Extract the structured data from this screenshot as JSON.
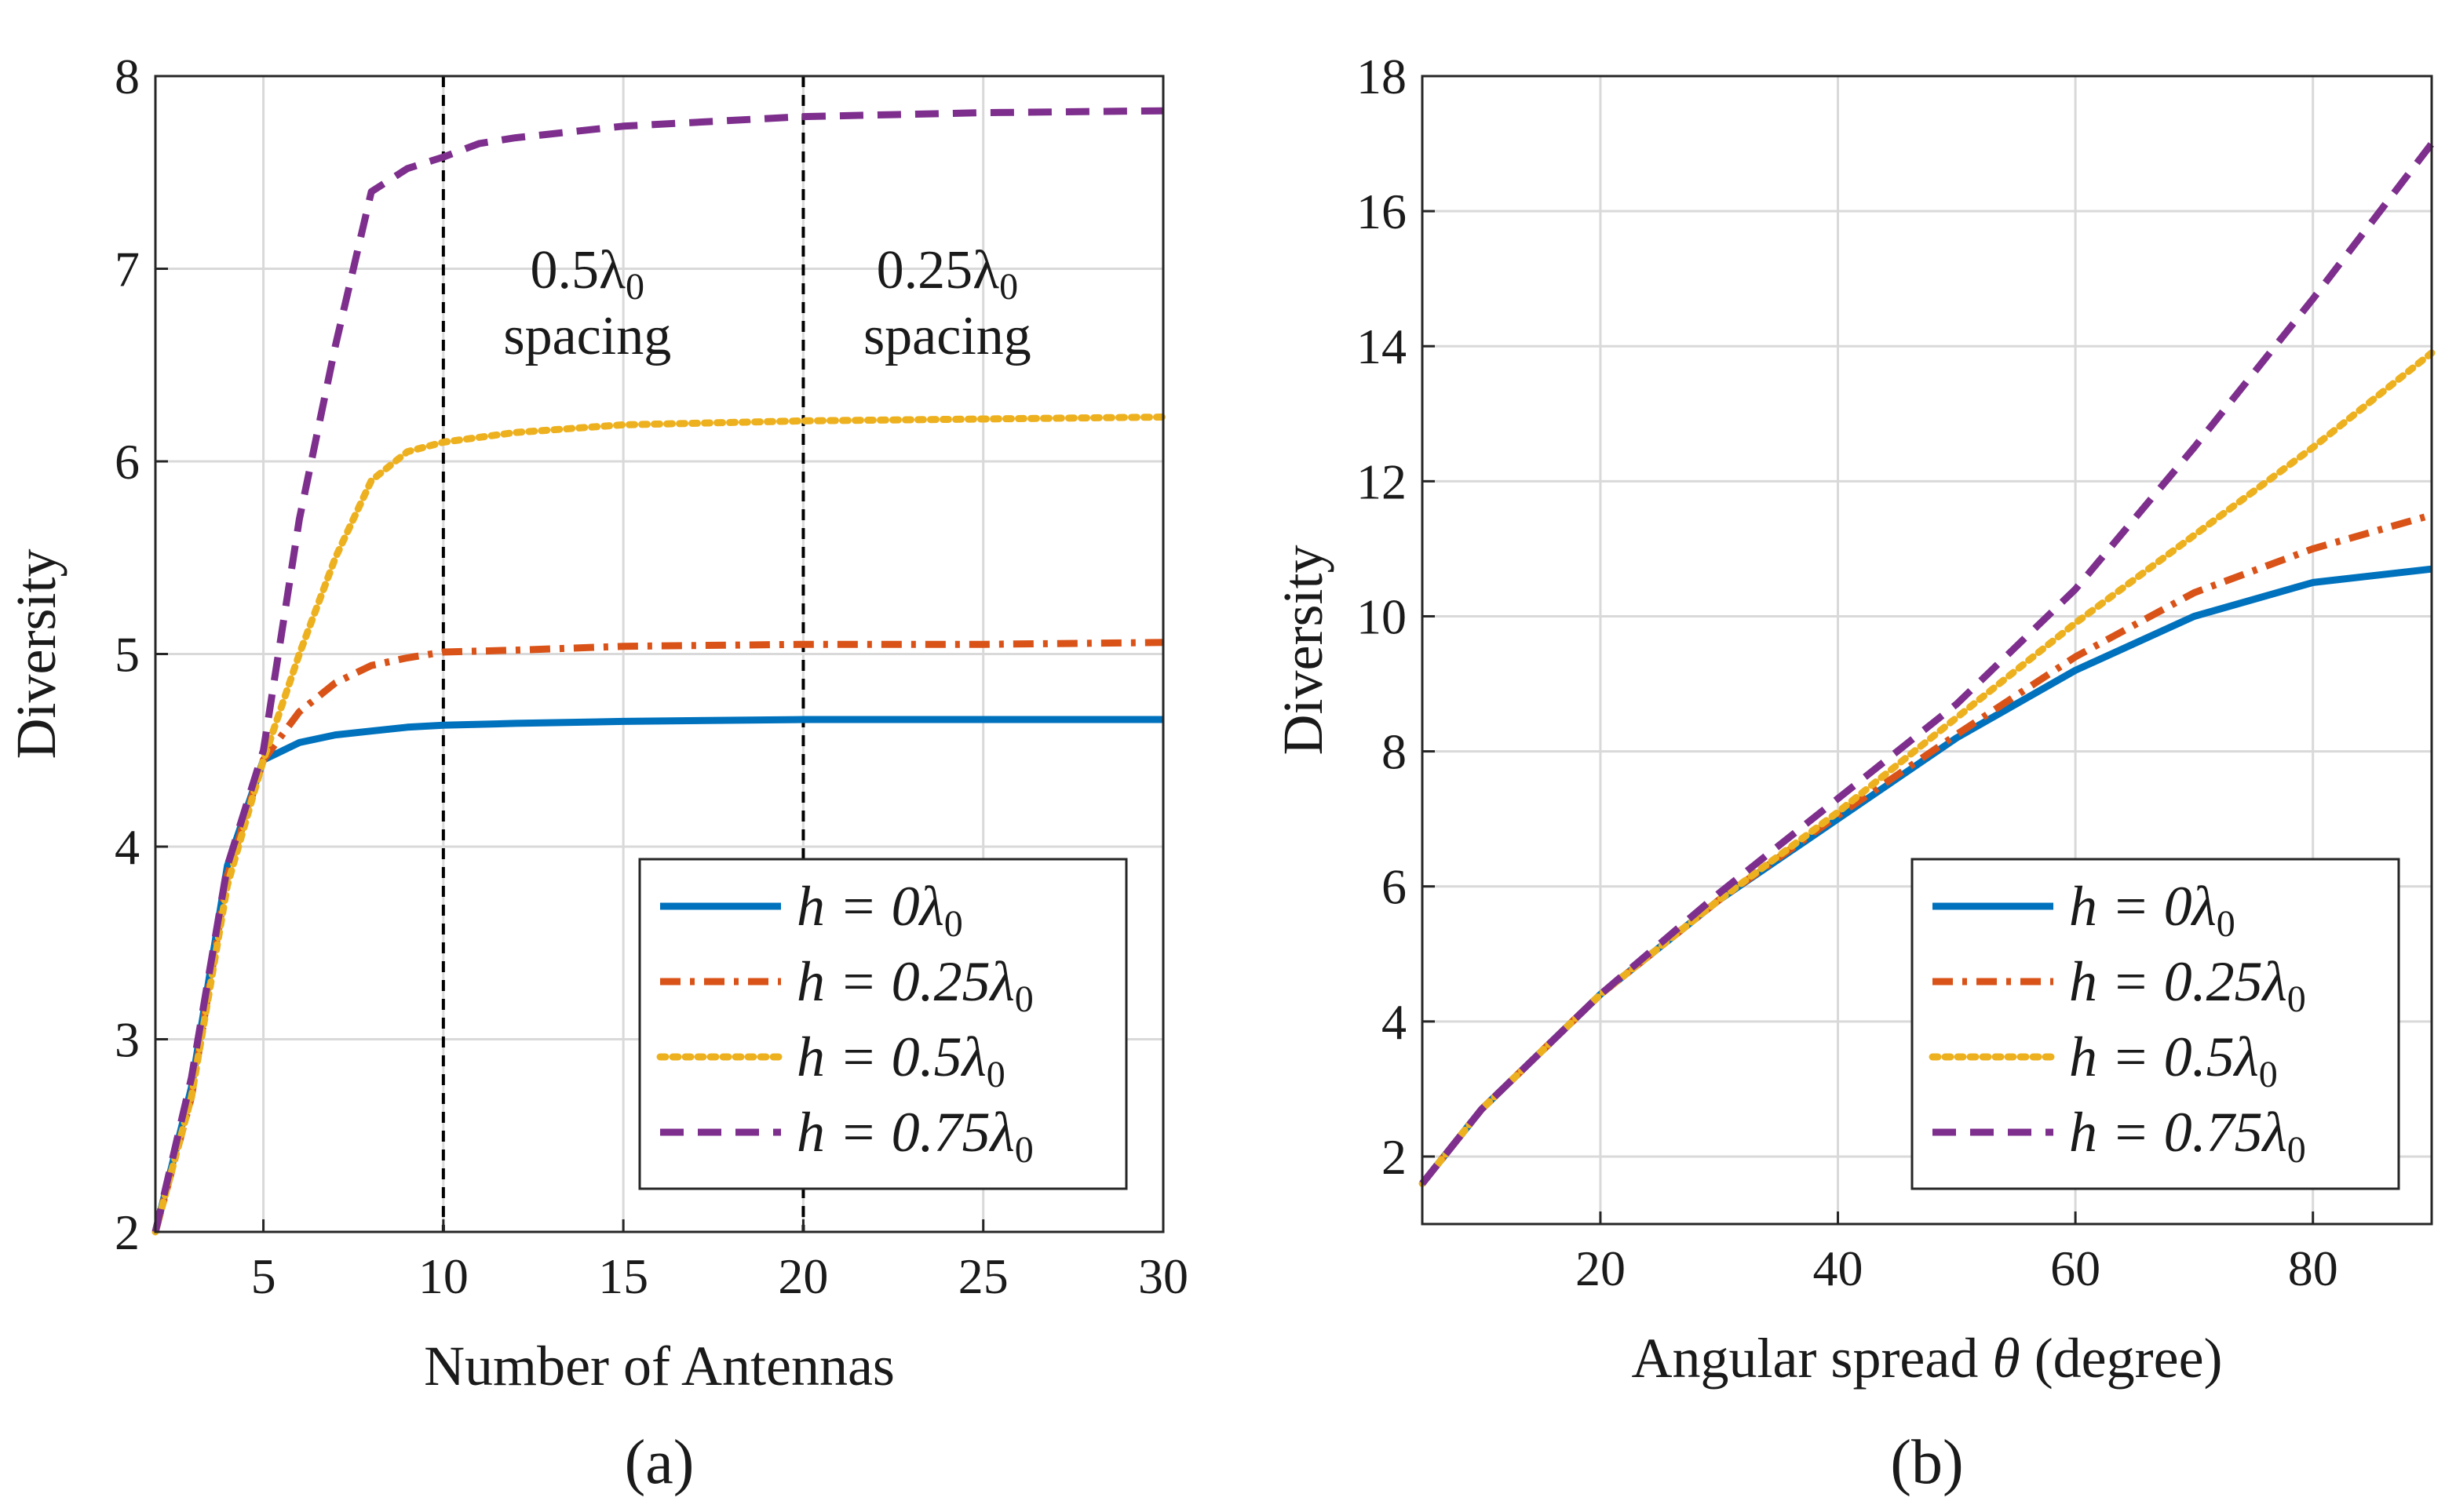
{
  "colors": {
    "h0": "#0072BD",
    "h025": "#D95319",
    "h05": "#EDB120",
    "h075": "#7E2F8E",
    "axis": "#262626",
    "grid": "#d9d9d9"
  },
  "chart_data": [
    {
      "type": "line",
      "panel_label": "(a)",
      "title": "",
      "xlabel": "Number of Antennas",
      "ylabel": "Diversity",
      "xlim": [
        2,
        30
      ],
      "ylim": [
        2,
        8
      ],
      "xticks": [
        5,
        10,
        15,
        20,
        25,
        30
      ],
      "yticks": [
        2,
        3,
        4,
        5,
        6,
        7,
        8
      ],
      "grid": true,
      "legend_position": "bottom-right",
      "vlines": [
        10,
        20
      ],
      "annotations": [
        {
          "line1_main": "0.5λ",
          "line1_sub": "0",
          "line2": "spacing",
          "x": 14,
          "y": 6.9
        },
        {
          "line1_main": "0.25λ",
          "line1_sub": "0",
          "line2": "spacing",
          "x": 24,
          "y": 6.9
        }
      ],
      "series": [
        {
          "name": "h = 0λ0",
          "legend_main": "h = 0λ",
          "legend_sub": "0",
          "style": "solid",
          "color_key": "h0",
          "x": [
            2,
            3,
            4,
            5,
            6,
            7,
            8,
            9,
            10,
            12,
            15,
            20,
            25,
            30
          ],
          "y": [
            2.0,
            2.75,
            3.9,
            4.45,
            4.54,
            4.58,
            4.6,
            4.62,
            4.63,
            4.64,
            4.65,
            4.66,
            4.66,
            4.66
          ]
        },
        {
          "name": "h = 0.25λ0",
          "legend_main": "h = 0.25λ",
          "legend_sub": "0",
          "style": "dashdot",
          "color_key": "h025",
          "x": [
            2,
            3,
            4,
            5,
            6,
            7,
            8,
            9,
            10,
            12,
            15,
            20,
            25,
            30
          ],
          "y": [
            2.0,
            2.7,
            3.85,
            4.45,
            4.7,
            4.85,
            4.94,
            4.98,
            5.01,
            5.02,
            5.04,
            5.05,
            5.05,
            5.06
          ]
        },
        {
          "name": "h = 0.5λ0",
          "legend_main": "h = 0.5λ",
          "legend_sub": "0",
          "style": "dotted",
          "color_key": "h05",
          "x": [
            2,
            3,
            4,
            5,
            6,
            7,
            8,
            9,
            10,
            12,
            15,
            20,
            25,
            30
          ],
          "y": [
            2.0,
            2.7,
            3.8,
            4.45,
            5.0,
            5.5,
            5.9,
            6.05,
            6.1,
            6.15,
            6.19,
            6.21,
            6.22,
            6.23
          ]
        },
        {
          "name": "h = 0.75λ0",
          "legend_main": "h = 0.75λ",
          "legend_sub": "0",
          "style": "dashed",
          "color_key": "h075",
          "x": [
            2,
            3,
            4,
            5,
            6,
            7,
            8,
            9,
            10,
            11,
            12,
            15,
            20,
            25,
            30
          ],
          "y": [
            2.0,
            2.8,
            3.9,
            4.5,
            5.7,
            6.6,
            7.4,
            7.52,
            7.58,
            7.65,
            7.68,
            7.74,
            7.79,
            7.81,
            7.82
          ]
        }
      ]
    },
    {
      "type": "line",
      "panel_label": "(b)",
      "title": "",
      "xlabel_main": "Angular spread ",
      "xlabel_symbol": "θ",
      "xlabel_unit": " (degree)",
      "ylabel": "Diversity",
      "xlim": [
        5,
        90
      ],
      "ylim": [
        1,
        18
      ],
      "xticks": [
        20,
        40,
        60,
        80
      ],
      "yticks": [
        2,
        4,
        6,
        8,
        10,
        12,
        14,
        16,
        18
      ],
      "grid": true,
      "legend_position": "bottom-right",
      "series": [
        {
          "name": "h = 0λ0",
          "legend_main": "h = 0λ",
          "legend_sub": "0",
          "style": "solid",
          "color_key": "h0",
          "x": [
            5,
            10,
            20,
            30,
            40,
            50,
            60,
            70,
            80,
            90
          ],
          "y": [
            1.6,
            2.7,
            4.4,
            5.8,
            7.0,
            8.2,
            9.2,
            10.0,
            10.5,
            10.7
          ]
        },
        {
          "name": "h = 0.25λ0",
          "legend_main": "h = 0.25λ",
          "legend_sub": "0",
          "style": "dashdot",
          "color_key": "h025",
          "x": [
            5,
            10,
            20,
            30,
            40,
            50,
            60,
            70,
            80,
            90
          ],
          "y": [
            1.6,
            2.7,
            4.4,
            5.8,
            7.05,
            8.25,
            9.4,
            10.35,
            11.0,
            11.5
          ]
        },
        {
          "name": "h = 0.5λ0",
          "legend_main": "h = 0.5λ",
          "legend_sub": "0",
          "style": "dotted",
          "color_key": "h05",
          "x": [
            5,
            10,
            20,
            30,
            40,
            50,
            60,
            70,
            80,
            90
          ],
          "y": [
            1.6,
            2.7,
            4.4,
            5.8,
            7.1,
            8.5,
            9.9,
            11.2,
            12.5,
            13.9
          ]
        },
        {
          "name": "h = 0.75λ0",
          "legend_main": "h = 0.75λ",
          "legend_sub": "0",
          "style": "dashed",
          "color_key": "h075",
          "x": [
            5,
            10,
            20,
            30,
            40,
            50,
            60,
            70,
            80,
            90
          ],
          "y": [
            1.6,
            2.7,
            4.4,
            5.9,
            7.3,
            8.7,
            10.4,
            12.5,
            14.7,
            17.0
          ]
        }
      ]
    }
  ]
}
